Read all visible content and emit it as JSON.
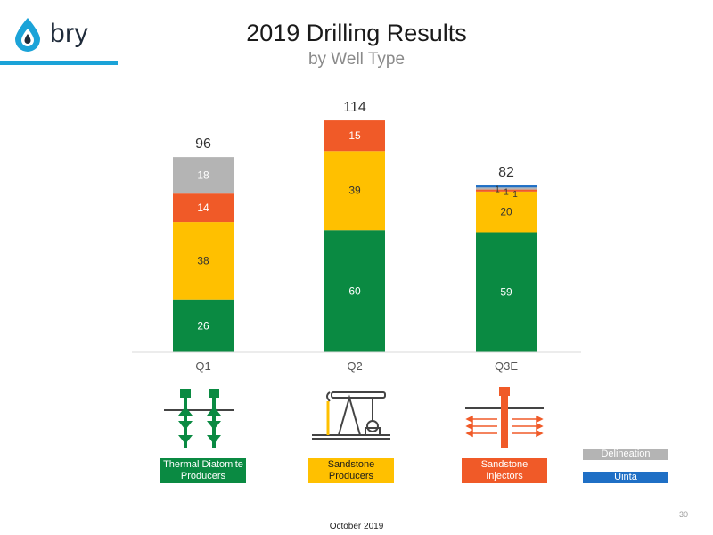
{
  "logo": {
    "text": "bry",
    "icon": "drop-icon"
  },
  "header": {
    "title": "2019 Drilling Results",
    "subtitle": "by Well Type"
  },
  "chart_data": {
    "type": "bar",
    "stacked": true,
    "title": "2019 Drilling Results",
    "subtitle": "by Well Type",
    "categories": [
      "Q1",
      "Q2",
      "Q3E"
    ],
    "totals": [
      "96",
      "114",
      "82"
    ],
    "series": [
      {
        "name": "Thermal Diatomite Producers",
        "color": "#0a8a42",
        "values": [
          26,
          60,
          59
        ],
        "labels": [
          "26",
          "60",
          "59"
        ]
      },
      {
        "name": "Sandstone Producers",
        "color": "#ffc000",
        "values": [
          38,
          39,
          20
        ],
        "labels": [
          "38",
          "39",
          "20"
        ]
      },
      {
        "name": "Sandstone Injectors",
        "color": "#f05a28",
        "values": [
          14,
          15,
          1
        ],
        "labels": [
          "14",
          "15",
          "1"
        ]
      },
      {
        "name": "Delineation",
        "color": "#b4b4b4",
        "values": [
          18,
          0,
          1
        ],
        "labels": [
          "18",
          "",
          "1"
        ]
      },
      {
        "name": "Uinta",
        "color": "#1f6fc5",
        "values": [
          0,
          0,
          1
        ],
        "labels": [
          "",
          "",
          "1"
        ]
      }
    ],
    "ylim": [
      0,
      125
    ],
    "grid": false
  },
  "legend": {
    "thermal": "Thermal Diatomite Producers",
    "sandstone_producers": "Sandstone Producers",
    "sandstone_injectors": "Sandstone Injectors",
    "delineation": "Delineation",
    "uinta": "Uinta"
  },
  "icons": [
    "thermal-producer-icon",
    "pumpjack-icon",
    "injector-icon"
  ],
  "page_number": "30",
  "footer": "October 2019"
}
